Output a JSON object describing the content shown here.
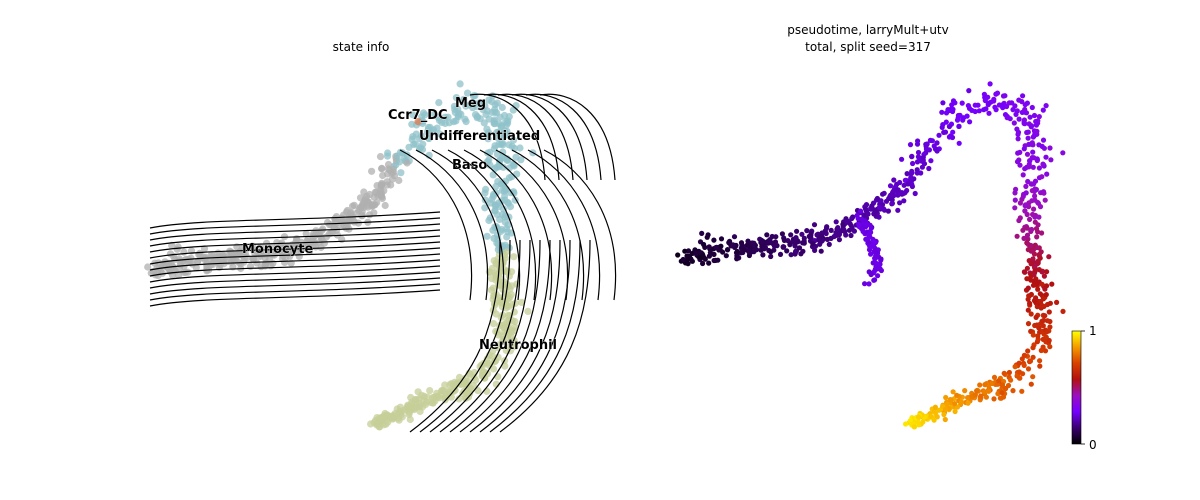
{
  "chart_data": [
    {
      "type": "scatter",
      "subtype": "embedding-with-velocity-streamlines",
      "title": "state info",
      "axes_visible": false,
      "grid": false,
      "legend": "on-data",
      "clusters": [
        {
          "name": "Monocyte",
          "color": "#b0b0b0"
        },
        {
          "name": "Undifferentiated",
          "color": "#8fc1c9"
        },
        {
          "name": "Meg",
          "color": "#8fc1c9"
        },
        {
          "name": "Baso",
          "color": "#8fc1c9"
        },
        {
          "name": "Ccr7_DC",
          "color": "#e07a4f"
        },
        {
          "name": "Neutrophil",
          "color": "#c6cf98"
        }
      ],
      "labels": [
        "Meg",
        "Ccr7_DC",
        "Undifferentiated",
        "Baso",
        "Monocyte",
        "Neutrophil"
      ],
      "streamline_color": "#000000"
    },
    {
      "type": "scatter",
      "subtype": "embedding-continuous-color",
      "title_line1": "pseudotime, larryMult+utv",
      "title_line2": "total, split seed=317",
      "axes_visible": false,
      "grid": false,
      "colorbar": {
        "colormap": "gnuplot",
        "range": [
          0,
          1
        ],
        "ticks": [
          "0",
          "1"
        ],
        "placement": "right",
        "stops": [
          "#000000",
          "#3a0070",
          "#7500ff",
          "#9a10c0",
          "#b21010",
          "#d84000",
          "#f59a00",
          "#ffff00"
        ]
      }
    }
  ]
}
